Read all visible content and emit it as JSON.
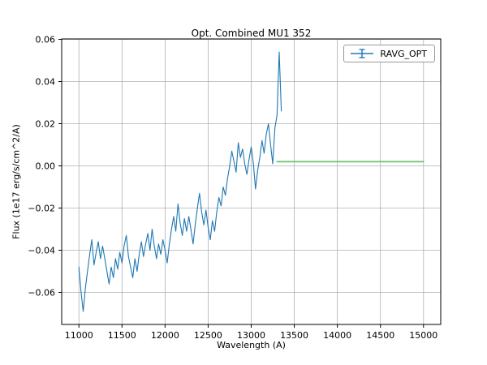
{
  "colors": {
    "grid": "#b0b0b0",
    "axis": "#000000",
    "background": "#ffffff",
    "series_blue": "#1f77b4",
    "series_green": "#74c476"
  },
  "chart_data": {
    "type": "line",
    "title": "Opt. Combined MU1 352",
    "xlabel": "Wavelength (A)",
    "ylabel": "Flux (1e17 erg/s/cm^2/A)",
    "xlim": [
      10800,
      15200
    ],
    "ylim": [
      -0.0752,
      0.0602
    ],
    "grid": true,
    "x_ticks": [
      11000,
      11500,
      12000,
      12500,
      13000,
      13500,
      14000,
      14500,
      15000
    ],
    "x_tick_labels": [
      "11000",
      "11500",
      "12000",
      "12500",
      "13000",
      "13500",
      "14000",
      "14500",
      "15000"
    ],
    "y_ticks": [
      -0.06,
      -0.04,
      -0.02,
      0,
      0.02,
      0.04,
      0.06
    ],
    "y_tick_labels": [
      "−0.06",
      "−0.04",
      "−0.02",
      "0.00",
      "0.02",
      "0.04",
      "0.06"
    ],
    "legend": {
      "position": "upper right",
      "entries": [
        {
          "label": "RAVG_OPT",
          "color": "#1f77b4",
          "marker": "errorbar"
        }
      ]
    },
    "series": [
      {
        "name": "RAVG_OPT",
        "color": "#1f77b4",
        "width": 1.1,
        "style": "errorbar-line",
        "x": [
          11000,
          11025,
          11050,
          11075,
          11100,
          11125,
          11150,
          11175,
          11200,
          11225,
          11250,
          11275,
          11300,
          11325,
          11350,
          11375,
          11400,
          11425,
          11450,
          11475,
          11500,
          11525,
          11550,
          11575,
          11600,
          11625,
          11650,
          11675,
          11700,
          11725,
          11750,
          11775,
          11800,
          11825,
          11850,
          11875,
          11900,
          11925,
          11950,
          11975,
          12000,
          12025,
          12050,
          12075,
          12100,
          12125,
          12150,
          12175,
          12200,
          12225,
          12250,
          12275,
          12300,
          12325,
          12350,
          12375,
          12400,
          12425,
          12450,
          12475,
          12500,
          12525,
          12550,
          12575,
          12600,
          12625,
          12650,
          12675,
          12700,
          12725,
          12750,
          12775,
          12800,
          12825,
          12850,
          12875,
          12900,
          12925,
          12950,
          12975,
          13000,
          13025,
          13050,
          13075,
          13100,
          13125,
          13150,
          13175,
          13200,
          13225,
          13250,
          13275,
          13300,
          13325,
          13350
        ],
        "y": [
          -0.048,
          -0.06,
          -0.069,
          -0.058,
          -0.05,
          -0.042,
          -0.035,
          -0.047,
          -0.041,
          -0.036,
          -0.044,
          -0.038,
          -0.044,
          -0.05,
          -0.056,
          -0.048,
          -0.053,
          -0.044,
          -0.049,
          -0.041,
          -0.046,
          -0.038,
          -0.033,
          -0.043,
          -0.048,
          -0.053,
          -0.044,
          -0.05,
          -0.042,
          -0.036,
          -0.043,
          -0.037,
          -0.032,
          -0.04,
          -0.03,
          -0.038,
          -0.044,
          -0.037,
          -0.042,
          -0.035,
          -0.04,
          -0.046,
          -0.037,
          -0.03,
          -0.024,
          -0.031,
          -0.018,
          -0.027,
          -0.033,
          -0.025,
          -0.031,
          -0.024,
          -0.03,
          -0.037,
          -0.028,
          -0.02,
          -0.013,
          -0.022,
          -0.028,
          -0.021,
          -0.029,
          -0.035,
          -0.026,
          -0.031,
          -0.022,
          -0.015,
          -0.019,
          -0.01,
          -0.014,
          -0.006,
          0.0,
          0.007,
          0.002,
          -0.003,
          0.011,
          0.004,
          0.008,
          0.001,
          -0.004,
          0.003,
          0.009,
          0.001,
          -0.011,
          -0.002,
          0.004,
          0.012,
          0.006,
          0.015,
          0.02,
          0.01,
          0.001,
          0.018,
          0.024,
          0.054,
          0.026
        ]
      },
      {
        "name": "green-flat-line",
        "color": "#74c476",
        "width": 1.8,
        "style": "line",
        "x": [
          13300,
          15000
        ],
        "y": [
          0.002,
          0.002
        ]
      }
    ]
  }
}
